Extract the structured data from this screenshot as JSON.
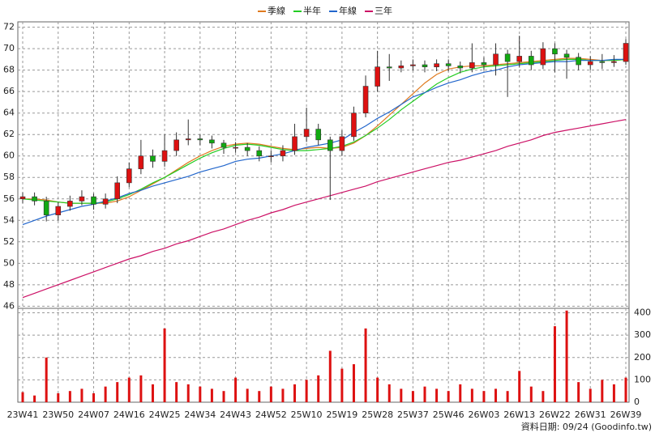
{
  "chart_data": {
    "type": "candlestick",
    "categories": [
      "23W41",
      null,
      null,
      "23W50",
      null,
      null,
      "24W07",
      null,
      null,
      "24W16",
      null,
      null,
      "24W25",
      null,
      null,
      "24W34",
      null,
      null,
      "24W43",
      null,
      null,
      "24W52",
      null,
      null,
      "25W10",
      null,
      null,
      "25W19",
      null,
      null,
      "25W28",
      null,
      null,
      "25W37",
      null,
      null,
      "25W46",
      null,
      null,
      "26W03",
      null,
      null,
      "26W13",
      null,
      null,
      "26W22",
      null,
      null,
      "26W31",
      null,
      null,
      "26W39"
    ],
    "open": [
      56.0,
      56.2,
      55.8,
      54.5,
      55.3,
      55.8,
      56.2,
      55.5,
      56.0,
      57.5,
      58.8,
      60.0,
      59.5,
      60.5,
      61.5,
      61.6,
      61.5,
      61.2,
      60.8,
      60.8,
      60.5,
      60.0,
      60.0,
      60.5,
      61.8,
      62.5,
      61.5,
      60.5,
      61.8,
      64.0,
      66.5,
      68.3,
      68.2,
      68.4,
      68.5,
      68.3,
      68.6,
      68.4,
      68.2,
      68.7,
      68.5,
      69.5,
      68.8,
      69.3,
      68.5,
      70.0,
      69.5,
      69.2,
      68.5,
      68.8,
      68.7,
      68.8
    ],
    "high": [
      56.6,
      56.6,
      56.2,
      55.7,
      56.3,
      56.8,
      56.5,
      56.5,
      58.1,
      59.4,
      61.5,
      60.6,
      62.0,
      62.2,
      63.4,
      62.0,
      61.9,
      61.5,
      61.3,
      61.2,
      60.9,
      60.5,
      61.0,
      63.0,
      64.5,
      63.0,
      61.8,
      62.4,
      64.6,
      67.5,
      69.8,
      69.5,
      68.9,
      69.0,
      68.9,
      69.0,
      69.0,
      68.8,
      70.5,
      69.2,
      70.5,
      69.9,
      71.2,
      69.8,
      70.6,
      70.5,
      69.9,
      69.6,
      69.3,
      69.5,
      69.4,
      70.9
    ],
    "low": [
      55.6,
      55.4,
      53.9,
      54.0,
      54.9,
      55.4,
      55.0,
      55.1,
      55.6,
      57.1,
      58.3,
      58.9,
      59.0,
      60.0,
      61.0,
      61.0,
      60.7,
      60.2,
      60.3,
      60.0,
      59.5,
      59.4,
      59.5,
      60.1,
      61.3,
      61.0,
      55.9,
      60.0,
      61.4,
      63.6,
      66.0,
      67.0,
      67.8,
      68.0,
      67.8,
      67.9,
      67.9,
      67.7,
      67.8,
      68.0,
      67.5,
      65.5,
      68.3,
      68.0,
      68.1,
      67.8,
      67.2,
      68.0,
      68.0,
      68.1,
      68.3,
      68.5
    ],
    "close": [
      56.2,
      55.8,
      54.5,
      55.3,
      55.8,
      56.2,
      55.5,
      56.0,
      57.5,
      58.8,
      60.0,
      59.5,
      60.5,
      61.5,
      61.6,
      61.5,
      61.2,
      60.8,
      60.8,
      60.5,
      60.0,
      60.0,
      60.5,
      61.8,
      62.5,
      61.5,
      60.5,
      61.8,
      64.0,
      66.5,
      68.3,
      68.2,
      68.4,
      68.5,
      68.3,
      68.6,
      68.4,
      68.2,
      68.7,
      68.5,
      69.5,
      68.8,
      69.3,
      68.5,
      70.0,
      69.5,
      69.2,
      68.5,
      68.8,
      68.7,
      68.8,
      70.5
    ],
    "up_color": "#dd1111",
    "down_color": "#11aa11",
    "series": [
      {
        "name": "季線",
        "color": "#e07a1f",
        "values": [
          56.0,
          56.0,
          55.9,
          55.7,
          55.6,
          55.6,
          55.6,
          55.6,
          55.8,
          56.2,
          56.8,
          57.4,
          58.0,
          58.7,
          59.4,
          60.0,
          60.5,
          60.9,
          61.1,
          61.2,
          61.1,
          60.9,
          60.7,
          60.6,
          60.7,
          60.8,
          60.7,
          60.8,
          61.2,
          61.9,
          62.8,
          63.8,
          64.8,
          65.8,
          66.8,
          67.6,
          68.1,
          68.3,
          68.4,
          68.4,
          68.5,
          68.6,
          68.7,
          68.8,
          68.9,
          69.0,
          69.1,
          69.1,
          69.0,
          68.9,
          68.9,
          69.0
        ]
      },
      {
        "name": "半年",
        "color": "#22cc22",
        "values": [
          56.0,
          55.9,
          55.8,
          55.7,
          55.6,
          55.6,
          55.6,
          55.7,
          56.0,
          56.4,
          56.9,
          57.5,
          58.0,
          58.6,
          59.2,
          59.8,
          60.3,
          60.7,
          61.0,
          61.1,
          61.0,
          60.8,
          60.6,
          60.5,
          60.5,
          60.6,
          60.7,
          60.9,
          61.3,
          61.9,
          62.6,
          63.4,
          64.3,
          65.1,
          65.9,
          66.7,
          67.3,
          67.8,
          68.1,
          68.3,
          68.4,
          68.5,
          68.6,
          68.7,
          68.8,
          68.9,
          69.0,
          69.0,
          68.9,
          68.9,
          68.9,
          69.0
        ]
      },
      {
        "name": "年線",
        "color": "#2266cc",
        "values": [
          53.6,
          54.0,
          54.4,
          54.7,
          55.0,
          55.3,
          55.5,
          55.8,
          56.1,
          56.5,
          56.8,
          57.2,
          57.5,
          57.8,
          58.1,
          58.5,
          58.8,
          59.1,
          59.5,
          59.7,
          59.8,
          60.0,
          60.2,
          60.5,
          60.8,
          61.0,
          61.2,
          61.5,
          62.2,
          62.8,
          63.5,
          64.1,
          64.8,
          65.5,
          65.9,
          66.4,
          66.8,
          67.1,
          67.5,
          67.8,
          68.0,
          68.3,
          68.5,
          68.6,
          68.7,
          68.8,
          68.8,
          68.9,
          68.9,
          68.9,
          69.0,
          69.0
        ]
      },
      {
        "name": "三年",
        "color": "#cc1166",
        "values": [
          46.8,
          47.2,
          47.6,
          48.0,
          48.4,
          48.8,
          49.2,
          49.6,
          50.0,
          50.4,
          50.7,
          51.1,
          51.4,
          51.8,
          52.1,
          52.5,
          52.9,
          53.2,
          53.6,
          54.0,
          54.3,
          54.7,
          55.0,
          55.4,
          55.7,
          56.0,
          56.3,
          56.6,
          56.9,
          57.2,
          57.6,
          57.9,
          58.2,
          58.5,
          58.8,
          59.1,
          59.4,
          59.6,
          59.9,
          60.2,
          60.5,
          60.9,
          61.2,
          61.5,
          61.9,
          62.2,
          62.4,
          62.6,
          62.8,
          63.0,
          63.2,
          63.4
        ]
      }
    ],
    "ylim": [
      45.8,
      72.5
    ],
    "yticks": [
      46,
      48,
      50,
      52,
      54,
      56,
      58,
      60,
      62,
      64,
      66,
      68,
      70,
      72
    ],
    "grid": true,
    "volume": {
      "values": [
        45,
        30,
        200,
        40,
        50,
        60,
        40,
        70,
        90,
        110,
        120,
        80,
        330,
        90,
        80,
        70,
        60,
        50,
        110,
        60,
        50,
        70,
        60,
        80,
        100,
        120,
        230,
        150,
        170,
        330,
        110,
        80,
        60,
        50,
        70,
        60,
        50,
        80,
        60,
        50,
        60,
        50,
        140,
        70,
        50,
        340,
        410,
        90,
        60,
        100,
        80,
        110
      ],
      "color": "#dd1111",
      "ylim": [
        0,
        420
      ],
      "yticks": [
        0,
        100,
        200,
        300,
        400
      ]
    },
    "footer": "資料日期: 09/24  (Goodinfo.tw)"
  }
}
